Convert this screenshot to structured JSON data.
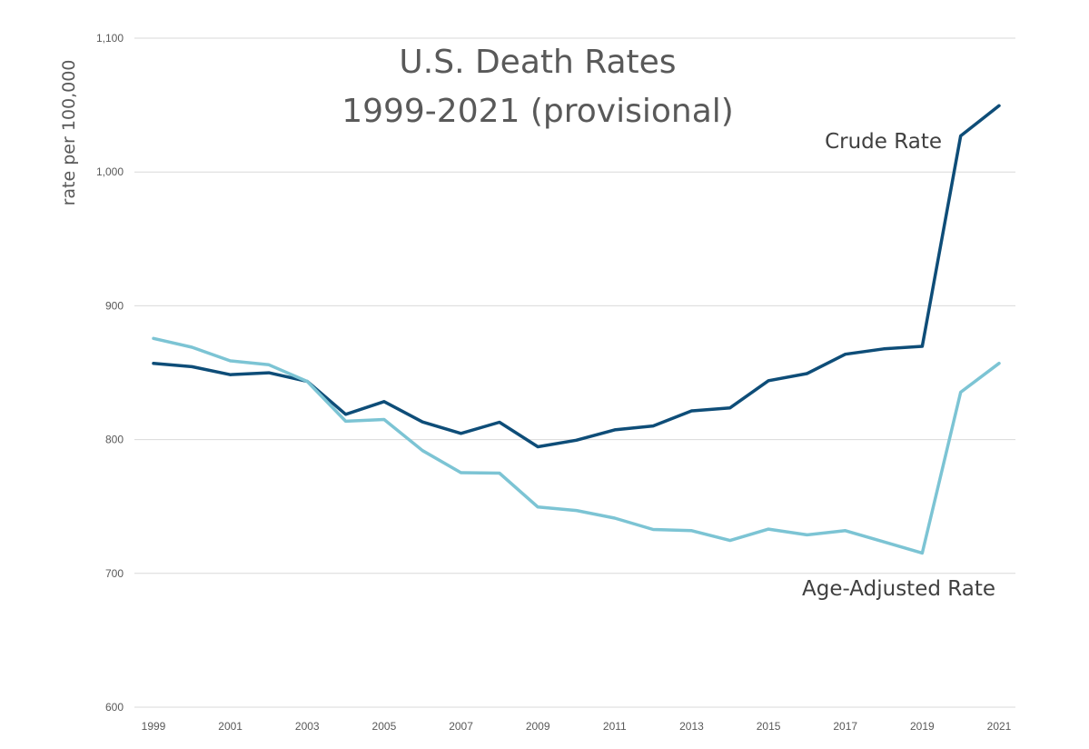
{
  "chart_data": {
    "type": "line",
    "title": [
      "U.S. Death Rates",
      "1999-2021 (provisional)"
    ],
    "ylabel": "rate per 100,000",
    "xlabel": "",
    "ylim": [
      600,
      1100
    ],
    "yticks": [
      600,
      700,
      800,
      900,
      1000,
      1100
    ],
    "ytick_labels": [
      "600",
      "700",
      "800",
      "900",
      "1,000",
      "1,100"
    ],
    "x": [
      1999,
      2000,
      2001,
      2002,
      2003,
      2004,
      2005,
      2006,
      2007,
      2008,
      2009,
      2010,
      2011,
      2012,
      2013,
      2014,
      2015,
      2016,
      2017,
      2018,
      2019,
      2020,
      2021
    ],
    "xtick_labels": [
      "1999",
      "2001",
      "2003",
      "2005",
      "2007",
      "2009",
      "2011",
      "2013",
      "2015",
      "2017",
      "2019",
      "2021"
    ],
    "grid": true,
    "series": [
      {
        "name": "Crude Rate",
        "label": "Crude Rate",
        "color": "#0e4d78",
        "values": [
          857.0,
          854.5,
          848.5,
          849.9,
          843.5,
          818.9,
          828.4,
          813.2,
          804.6,
          813.0,
          794.6,
          799.5,
          807.3,
          810.2,
          821.5,
          823.7,
          844.0,
          849.3,
          863.8,
          867.8,
          869.7,
          1027.0,
          1049.5
        ]
      },
      {
        "name": "Age-Adjusted Rate",
        "label": "Age-Adjusted Rate",
        "color": "#7cc4d4",
        "values": [
          875.6,
          869.0,
          858.8,
          855.9,
          843.5,
          813.7,
          815.0,
          791.8,
          775.3,
          774.9,
          749.6,
          747.0,
          741.3,
          732.8,
          731.9,
          724.6,
          733.1,
          728.8,
          731.9,
          723.6,
          715.2,
          835.4,
          857.0
        ]
      }
    ]
  }
}
